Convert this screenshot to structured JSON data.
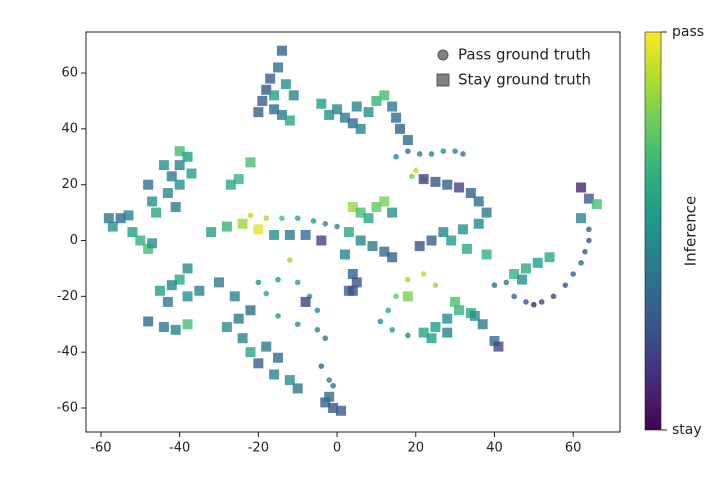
{
  "chart_data": {
    "type": "scatter",
    "xlim": [
      -63.8,
      71.9
    ],
    "ylim": [
      -68.6,
      74.7
    ],
    "xticks": [
      -60,
      -40,
      -20,
      0,
      20,
      40,
      60
    ],
    "yticks": [
      -60,
      -40,
      -20,
      0,
      20,
      40,
      60
    ],
    "legend": "upper right",
    "series": [
      {
        "name": "Pass ground truth",
        "marker": "circle",
        "color": "#808080",
        "x": [
          -22,
          -18,
          -14,
          -10,
          -6,
          -3,
          0,
          18,
          21,
          24,
          27,
          30,
          32,
          15,
          19,
          20,
          22,
          40,
          43,
          45,
          48,
          52,
          55,
          58,
          60,
          62,
          63,
          64,
          64,
          50,
          -20,
          -15,
          -10,
          -7,
          -5,
          -18,
          -15,
          -10,
          -5,
          -3,
          -1,
          -2,
          -4,
          15,
          18,
          22,
          25,
          13,
          11,
          14,
          18,
          -12
        ],
        "y": [
          9,
          8,
          8,
          8,
          7,
          6,
          5,
          32,
          31,
          31,
          32,
          32,
          31,
          30,
          23,
          25,
          22,
          -16,
          -15,
          -20,
          -22,
          -22,
          -20,
          -16,
          -12,
          -8,
          -4,
          0,
          4,
          -23,
          -15,
          -14,
          -15,
          -20,
          -25,
          -19,
          -27,
          -30,
          -32,
          -35,
          -52,
          -50,
          -45,
          -20,
          -14,
          -12,
          -16,
          -25,
          -29,
          -32,
          -34,
          -7
        ],
        "c": [
          0.9,
          0.85,
          0.7,
          0.6,
          0.55,
          0.5,
          0.45,
          0.35,
          0.4,
          0.45,
          0.5,
          0.45,
          0.4,
          0.5,
          0.8,
          0.9,
          0.85,
          0.35,
          0.4,
          0.3,
          0.25,
          0.2,
          0.2,
          0.25,
          0.3,
          0.35,
          0.3,
          0.25,
          0.3,
          0.1,
          0.5,
          0.55,
          0.6,
          0.55,
          0.5,
          0.6,
          0.55,
          0.5,
          0.45,
          0.4,
          0.35,
          0.4,
          0.3,
          0.75,
          0.85,
          0.9,
          0.85,
          0.6,
          0.5,
          0.55,
          0.45,
          0.85
        ]
      },
      {
        "name": "Stay ground truth",
        "marker": "square",
        "color": "#808080",
        "x": [
          -14,
          -15,
          -17,
          -18,
          -19,
          -16,
          -14,
          -12,
          -20,
          -13,
          -11,
          -16,
          -4,
          0,
          2,
          4,
          6,
          8,
          10,
          12,
          14,
          15,
          16,
          18,
          -2,
          5,
          -40,
          -38,
          -40,
          -44,
          -42,
          -40,
          -43,
          -48,
          -47,
          -46,
          -41,
          -37,
          -58,
          -55,
          -53,
          -57,
          -52,
          -50,
          -48,
          -47,
          -22,
          -25,
          -27,
          -32,
          -28,
          -24,
          -20,
          -16,
          -12,
          -8,
          -4,
          4,
          6,
          8,
          10,
          12,
          14,
          3,
          6,
          9,
          12,
          14,
          22,
          25,
          28,
          31,
          34,
          36,
          38,
          36,
          32,
          27,
          24,
          21,
          29,
          33,
          38,
          45,
          48,
          51,
          54,
          47,
          62,
          64,
          66,
          62,
          -38,
          -40,
          -42,
          -45,
          -43,
          -38,
          -35,
          -48,
          -44,
          -41,
          -38,
          -30,
          -26,
          -22,
          -25,
          -28,
          -24,
          -22,
          -18,
          -15,
          -20,
          -16,
          -12,
          -10,
          -3,
          -1,
          1,
          -2,
          22,
          25,
          28,
          31,
          34,
          28,
          24,
          37,
          40,
          41,
          30,
          18,
          35,
          2,
          4,
          5,
          3,
          -8,
          4
        ],
        "y": [
          68,
          62,
          58,
          54,
          50,
          47,
          45,
          43,
          46,
          56,
          52,
          52,
          49,
          47,
          44,
          42,
          40,
          46,
          50,
          52,
          48,
          44,
          40,
          36,
          45,
          48,
          32,
          30,
          27,
          27,
          23,
          20,
          17,
          20,
          14,
          10,
          12,
          24,
          8,
          8,
          9,
          5,
          3,
          0,
          -3,
          -1,
          28,
          22,
          20,
          3,
          5,
          6,
          4,
          2,
          2,
          2,
          0,
          12,
          10,
          8,
          12,
          14,
          10,
          3,
          0,
          -2,
          -4,
          -6,
          22,
          21,
          20,
          19,
          17,
          14,
          10,
          6,
          4,
          3,
          0,
          -2,
          0,
          -3,
          -5,
          -12,
          -10,
          -8,
          -6,
          -14,
          19,
          15,
          13,
          8,
          -10,
          -14,
          -16,
          -18,
          -22,
          -20,
          -18,
          -29,
          -31,
          -32,
          -30,
          -15,
          -20,
          -25,
          -28,
          -31,
          -35,
          -40,
          -38,
          -42,
          -44,
          -48,
          -50,
          -53,
          -58,
          -60,
          -61,
          -56,
          -33,
          -31,
          -28,
          -25,
          -26,
          -33,
          -35,
          -30,
          -36,
          -38,
          -22,
          -20,
          -27,
          -5,
          -12,
          -15,
          -18,
          -22,
          -18
        ],
        "c": [
          0.3,
          0.35,
          0.3,
          0.25,
          0.3,
          0.35,
          0.4,
          0.6,
          0.3,
          0.5,
          0.45,
          0.55,
          0.55,
          0.45,
          0.4,
          0.35,
          0.45,
          0.5,
          0.65,
          0.7,
          0.4,
          0.35,
          0.3,
          0.35,
          0.5,
          0.45,
          0.7,
          0.55,
          0.45,
          0.5,
          0.4,
          0.5,
          0.45,
          0.35,
          0.5,
          0.6,
          0.4,
          0.55,
          0.4,
          0.35,
          0.45,
          0.5,
          0.55,
          0.65,
          0.7,
          0.5,
          0.7,
          0.65,
          0.6,
          0.55,
          0.65,
          0.85,
          0.95,
          0.5,
          0.4,
          0.35,
          0.2,
          0.85,
          0.7,
          0.6,
          0.75,
          0.8,
          0.5,
          0.6,
          0.45,
          0.4,
          0.35,
          0.3,
          0.2,
          0.25,
          0.3,
          0.2,
          0.3,
          0.35,
          0.4,
          0.45,
          0.5,
          0.45,
          0.3,
          0.25,
          0.55,
          0.6,
          0.65,
          0.65,
          0.6,
          0.55,
          0.6,
          0.5,
          0.1,
          0.3,
          0.7,
          0.45,
          0.5,
          0.6,
          0.45,
          0.55,
          0.4,
          0.5,
          0.45,
          0.35,
          0.4,
          0.45,
          0.7,
          0.4,
          0.45,
          0.35,
          0.4,
          0.5,
          0.45,
          0.6,
          0.4,
          0.35,
          0.3,
          0.45,
          0.5,
          0.4,
          0.3,
          0.25,
          0.3,
          0.35,
          0.6,
          0.55,
          0.5,
          0.65,
          0.6,
          0.45,
          0.55,
          0.4,
          0.35,
          0.2,
          0.7,
          0.8,
          0.5,
          0.45,
          0.3,
          0.25,
          0.3,
          0.2,
          0.25
        ]
      }
    ],
    "colorbar": {
      "label": "Inference",
      "lim": [
        0,
        1
      ],
      "ticks": [
        {
          "value": 1,
          "label": "pass"
        },
        {
          "value": 0,
          "label": "stay"
        }
      ]
    }
  }
}
